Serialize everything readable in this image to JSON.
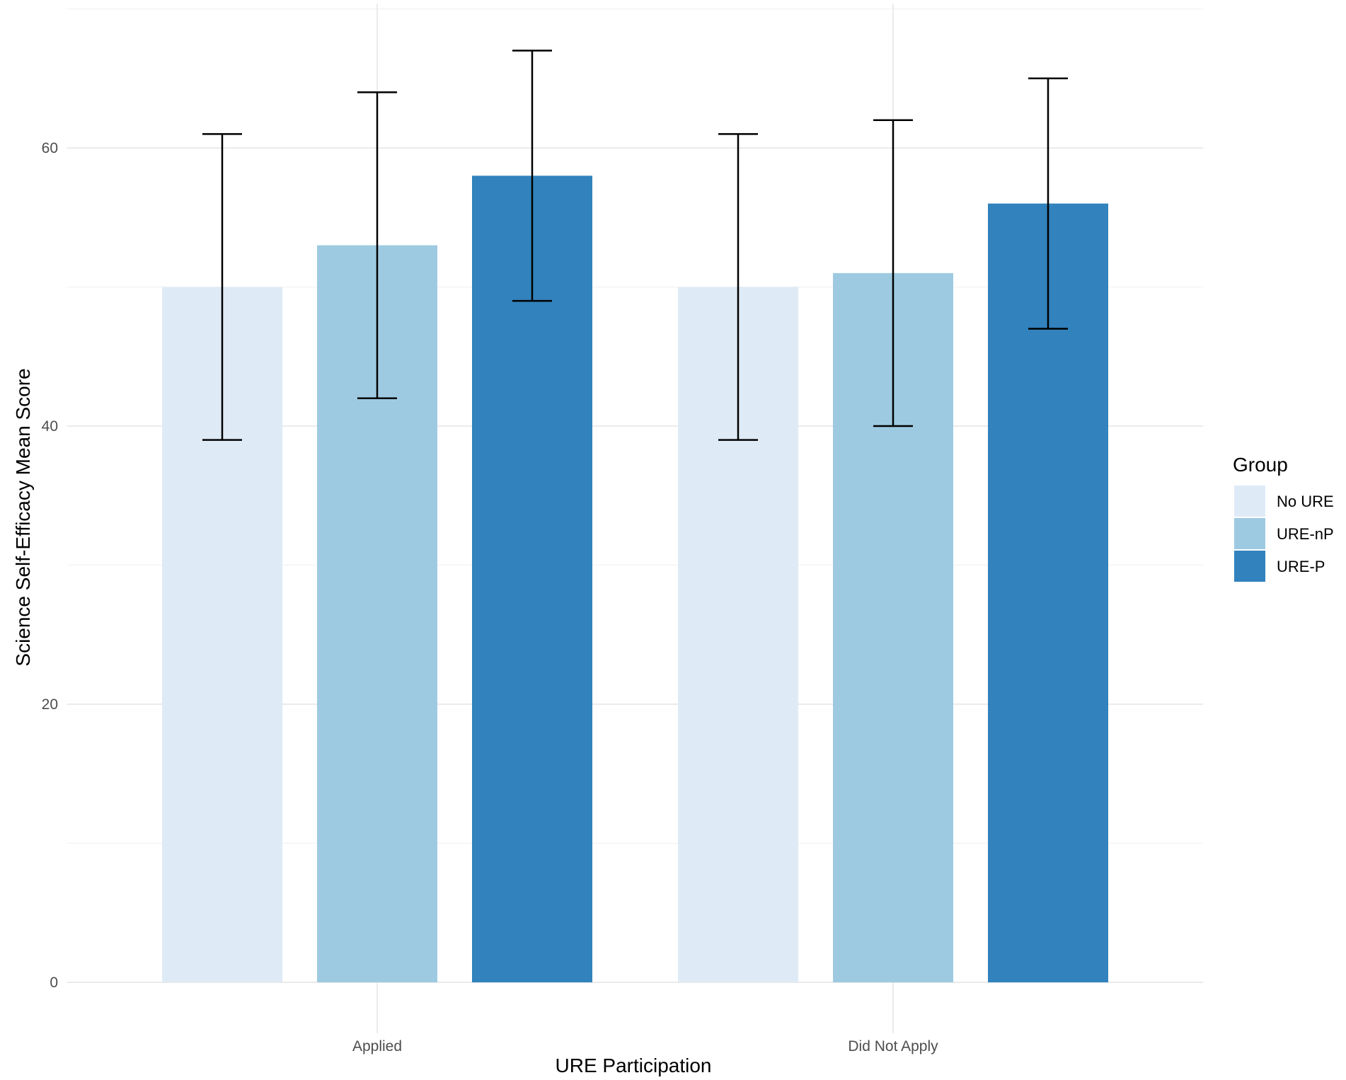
{
  "chart_data": {
    "type": "bar",
    "xlabel": "URE Participation",
    "ylabel": "Science Self-Efficacy Mean Score",
    "categories": [
      "Applied",
      "Did Not Apply"
    ],
    "ylim": [
      0,
      70
    ],
    "yticks": [
      0,
      20,
      40,
      60
    ],
    "grid": true,
    "legend": {
      "title": "Group",
      "position": "right"
    },
    "series": [
      {
        "name": "No URE",
        "color": "#deebf7",
        "values": [
          50,
          50
        ],
        "error_low": [
          39,
          39
        ],
        "error_high": [
          61,
          61
        ]
      },
      {
        "name": "URE-nP",
        "color": "#9ecae1",
        "values": [
          53,
          51
        ],
        "error_low": [
          42,
          40
        ],
        "error_high": [
          64,
          62
        ]
      },
      {
        "name": "URE-P",
        "color": "#3182bd",
        "values": [
          58,
          56
        ],
        "error_low": [
          49,
          47
        ],
        "error_high": [
          67,
          65
        ]
      }
    ]
  }
}
